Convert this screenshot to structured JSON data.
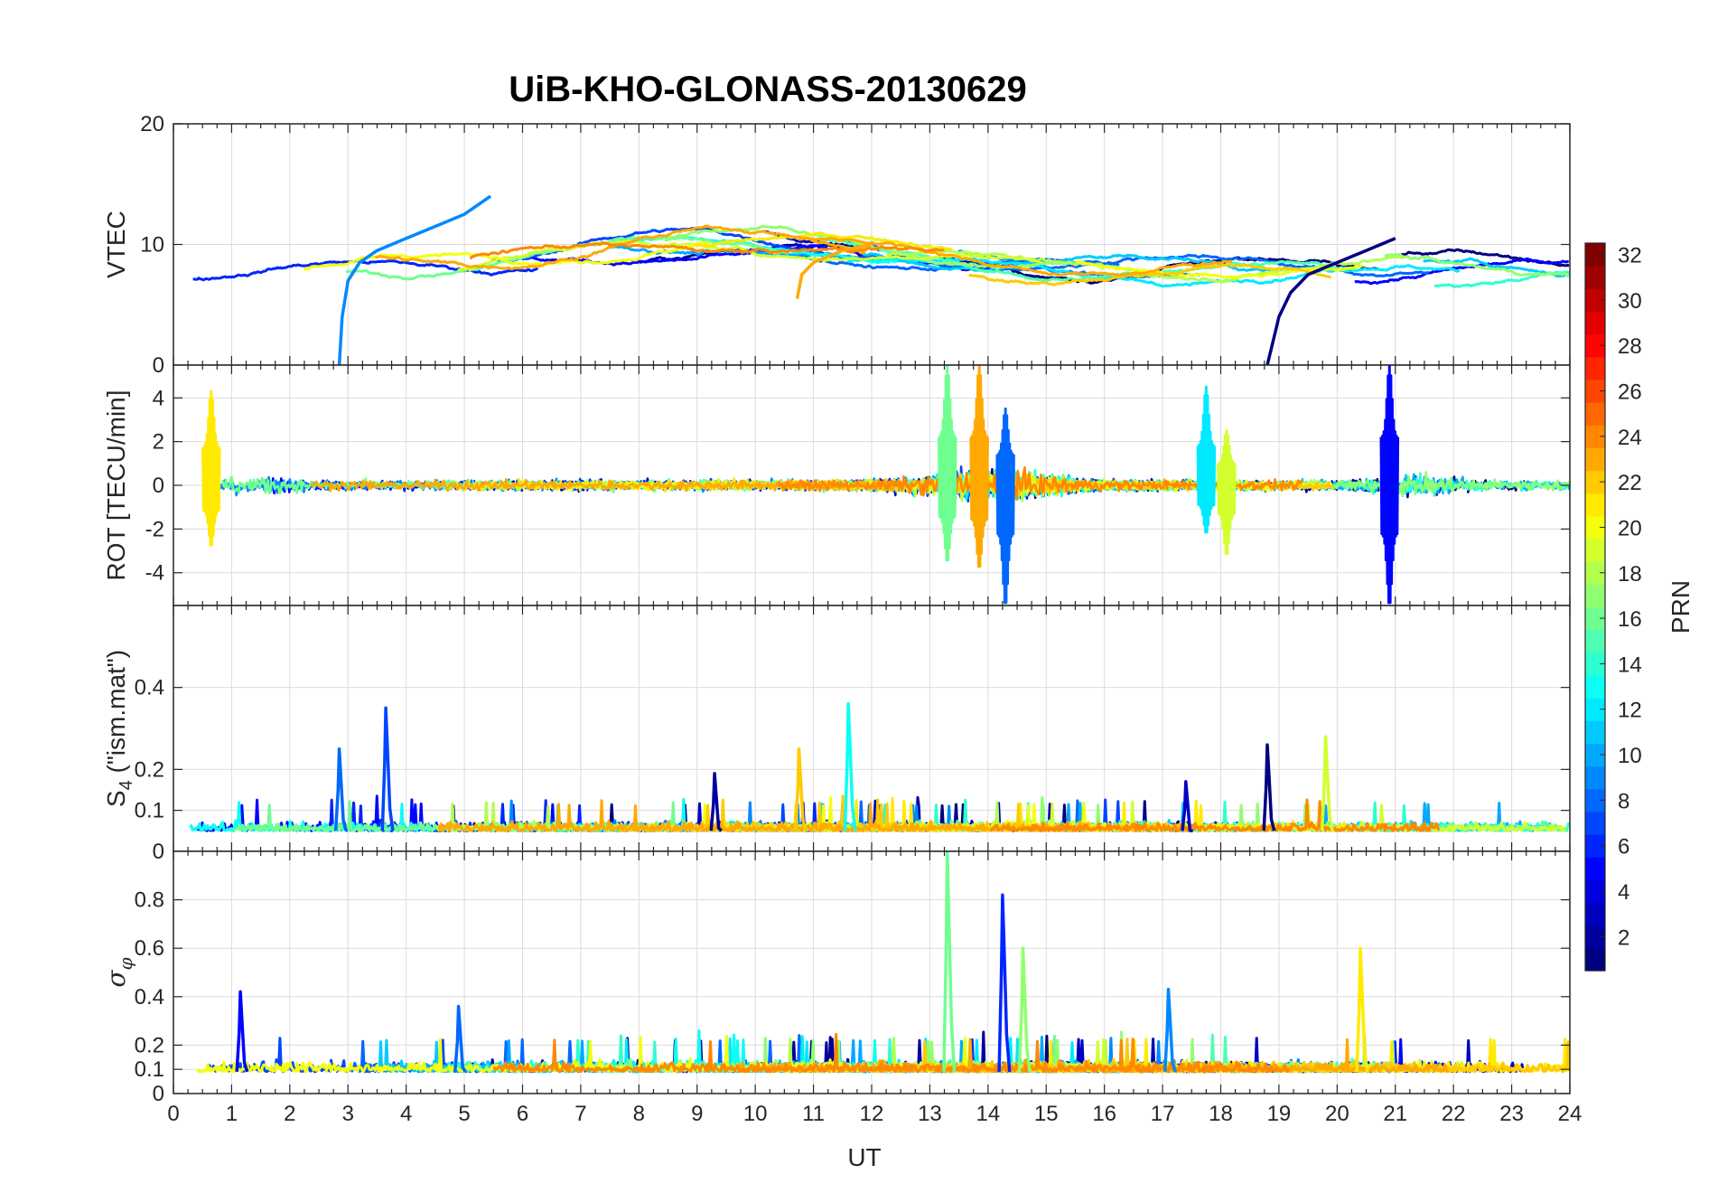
{
  "chart_data": {
    "type": "line",
    "title": "UiB-KHO-GLONASS-20130629",
    "xlabel": "UT",
    "xlim": [
      0,
      24
    ],
    "x_ticks": [
      0,
      1,
      2,
      3,
      4,
      5,
      6,
      7,
      8,
      9,
      10,
      11,
      12,
      13,
      14,
      15,
      16,
      17,
      18,
      19,
      20,
      21,
      22,
      23,
      24
    ],
    "grid": true,
    "panels": [
      {
        "id": "vtec",
        "ylabel": "VTEC",
        "ylim": [
          0,
          20
        ],
        "y_ticks": [
          0,
          10,
          20
        ],
        "events": [
          {
            "prn": 9,
            "x": [
              2.85,
              2.9,
              3.0,
              3.2,
              3.5,
              4.0,
              4.5,
              5.0,
              5.45
            ],
            "y": [
              0,
              4,
              7,
              8.5,
              9.5,
              10.5,
              11.5,
              12.5,
              14
            ]
          },
          {
            "prn": 1,
            "x": [
              18.8,
              18.9,
              19.0,
              19.2,
              19.5,
              20.0,
              20.5,
              21.0
            ],
            "y": [
              0,
              2,
              4,
              6,
              7.5,
              8.5,
              9.5,
              10.5
            ]
          },
          {
            "prn": 23,
            "x": [
              10.72,
              10.8,
              11.0,
              11.5,
              12.0
            ],
            "y": [
              5.5,
              7.5,
              8.5,
              9.5,
              10
            ]
          }
        ]
      },
      {
        "id": "rot",
        "ylabel": "ROT [TECU/min]",
        "ylim": [
          -5.5,
          5.5
        ],
        "y_ticks": [
          -4,
          -2,
          0,
          2,
          4
        ],
        "events": [
          {
            "prn": 16,
            "x": 13.3,
            "min": -3.5,
            "max": 5.5
          },
          {
            "prn": 23,
            "x": 13.85,
            "min": -3.8,
            "max": 5.5
          },
          {
            "prn": 8,
            "x": 14.3,
            "min": -5.5,
            "max": 3.5
          },
          {
            "prn": 5,
            "x": 20.9,
            "min": -5.5,
            "max": 5.5
          },
          {
            "prn": 19,
            "x": 18.1,
            "min": -3.2,
            "max": 2.5
          },
          {
            "prn": 12,
            "x": 17.75,
            "min": -2.2,
            "max": 4.5
          },
          {
            "prn": 21,
            "x": 0.65,
            "min": -2.8,
            "max": 4.3
          }
        ]
      },
      {
        "id": "s4",
        "ylabel": "S",
        "ylabel_sub": "4",
        "ylabel_suffix": " (\"ism.mat\")",
        "ylim": [
          0,
          0.6
        ],
        "y_ticks": [
          0,
          0.1,
          0.2,
          0.4
        ],
        "events": [
          {
            "prn": 8,
            "x": 2.85,
            "peak": 0.25
          },
          {
            "prn": 7,
            "x": 3.65,
            "peak": 0.35
          },
          {
            "prn": 2,
            "x": 9.3,
            "peak": 0.19
          },
          {
            "prn": 22,
            "x": 10.75,
            "peak": 0.25
          },
          {
            "prn": 13,
            "x": 11.6,
            "peak": 0.36
          },
          {
            "prn": 1,
            "x": 18.8,
            "peak": 0.26
          },
          {
            "prn": 19,
            "x": 19.8,
            "peak": 0.28
          },
          {
            "prn": 3,
            "x": 17.4,
            "peak": 0.17
          }
        ]
      },
      {
        "id": "sigma",
        "ylabel": "σ",
        "ylabel_sub": "φ",
        "ylim": [
          0,
          1
        ],
        "y_ticks": [
          0,
          0.1,
          0.2,
          0.4,
          0.6,
          0.8
        ],
        "events": [
          {
            "prn": 16,
            "x": 13.3,
            "peak": 1.0
          },
          {
            "prn": 6,
            "x": 14.25,
            "peak": 0.82
          },
          {
            "prn": 17,
            "x": 14.6,
            "peak": 0.6
          },
          {
            "prn": 21,
            "x": 20.4,
            "peak": 0.6
          },
          {
            "prn": 9,
            "x": 17.1,
            "peak": 0.43
          },
          {
            "prn": 5,
            "x": 1.15,
            "peak": 0.42
          },
          {
            "prn": 8,
            "x": 4.9,
            "peak": 0.36
          }
        ]
      }
    ],
    "colorbar": {
      "label": "PRN",
      "colormap": "jet",
      "range": [
        1,
        32
      ],
      "ticks": [
        2,
        4,
        6,
        8,
        10,
        12,
        14,
        16,
        18,
        20,
        22,
        24,
        26,
        28,
        30,
        32
      ]
    },
    "line_prns": [
      1,
      2,
      3,
      5,
      6,
      7,
      8,
      9,
      10,
      11,
      12,
      13,
      14,
      15,
      16,
      17,
      18,
      19,
      20,
      21,
      22,
      23,
      24
    ]
  }
}
